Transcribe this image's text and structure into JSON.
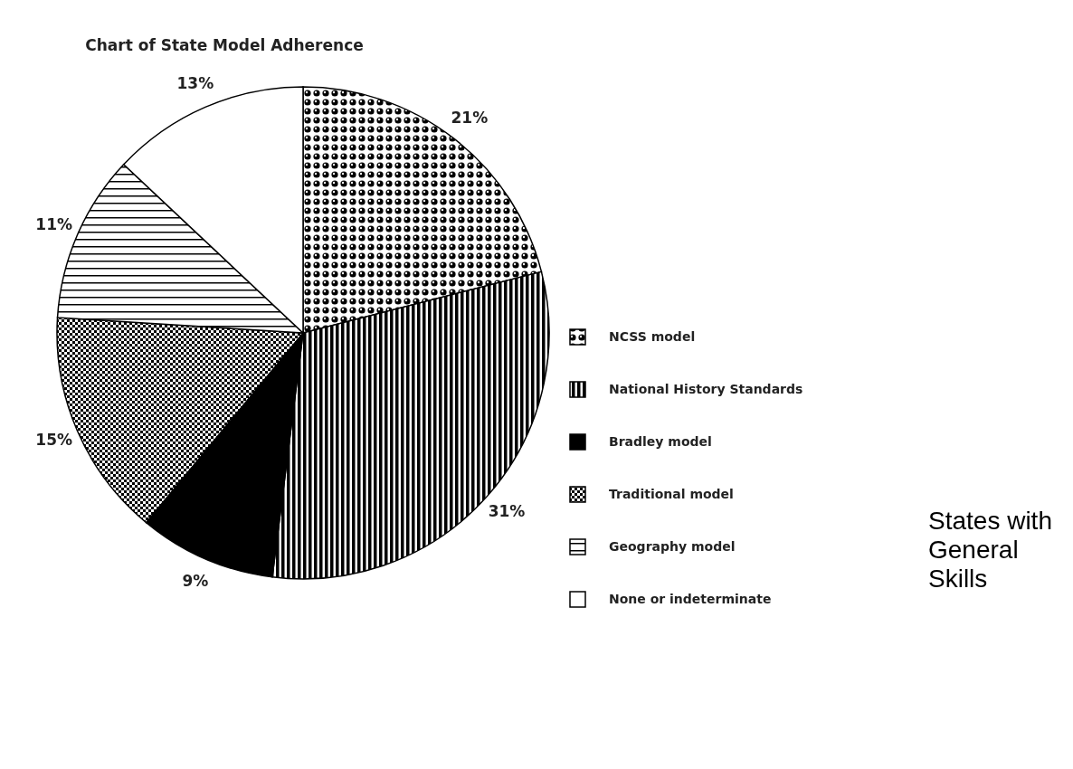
{
  "chart_data": {
    "type": "pie",
    "title": "Chart of State Model Adherence",
    "categories": [
      "NCSS model",
      "National History Standards",
      "Bradley model",
      "Traditional model",
      "Geography model",
      "None or indeterminate"
    ],
    "values": [
      21,
      31,
      9,
      15,
      11,
      13
    ],
    "value_labels": [
      "21%",
      "31%",
      "9%",
      "15%",
      "11%",
      "13%"
    ],
    "colors": [
      "#000000",
      "#000000",
      "#000000",
      "#000000",
      "#000000",
      "#ffffff"
    ],
    "legend": "right",
    "annotations": [
      "States with General Skills"
    ]
  }
}
